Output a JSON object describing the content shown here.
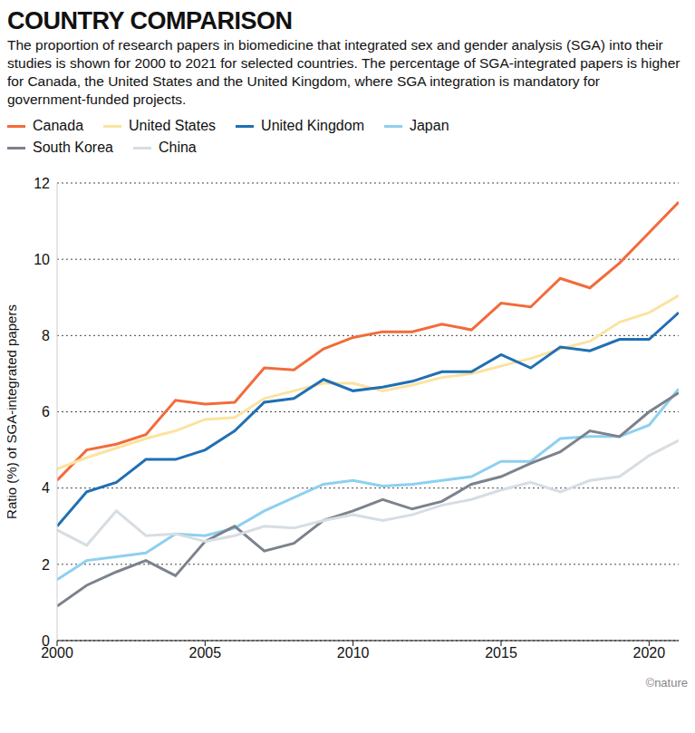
{
  "chart_data": {
    "type": "line",
    "title": "COUNTRY COMPARISON",
    "subtitle": "The proportion of research papers in biomedicine that integrated sex and gender analysis (SGA) into their studies is shown for 2000 to 2021 for selected countries. The percentage of SGA-integrated papers is higher for Canada, the United States and the United Kingdom, where SGA integration is mandatory for government-funded projects.",
    "y_label": "Ratio (%) of SGA-integrated papers",
    "credit": "©nature",
    "x": [
      2000,
      2001,
      2002,
      2003,
      2004,
      2005,
      2006,
      2007,
      2008,
      2009,
      2010,
      2011,
      2012,
      2013,
      2014,
      2015,
      2016,
      2017,
      2018,
      2019,
      2020,
      2021
    ],
    "xlim": [
      2000,
      2021
    ],
    "xticks": [
      2000,
      2005,
      2010,
      2015,
      2020
    ],
    "ylim": [
      0,
      12
    ],
    "yticks": [
      0,
      2,
      4,
      6,
      8,
      10,
      12
    ],
    "grid": true,
    "series": [
      {
        "name": "Canada",
        "color": "#f26b3a",
        "values": [
          4.2,
          5.0,
          5.15,
          5.4,
          6.3,
          6.2,
          6.25,
          7.15,
          7.1,
          7.65,
          7.95,
          8.1,
          8.1,
          8.3,
          8.15,
          8.85,
          8.75,
          9.5,
          9.25,
          9.9,
          10.7,
          11.5
        ]
      },
      {
        "name": "United States",
        "color": "#fbe3a0",
        "values": [
          4.5,
          4.8,
          5.05,
          5.3,
          5.5,
          5.8,
          5.85,
          6.35,
          6.55,
          6.75,
          6.75,
          6.55,
          6.7,
          6.9,
          7.0,
          7.2,
          7.4,
          7.65,
          7.85,
          8.35,
          8.6,
          9.05
        ]
      },
      {
        "name": "United Kingdom",
        "color": "#1f6fb5",
        "values": [
          3.0,
          3.9,
          4.15,
          4.75,
          4.75,
          5.0,
          5.5,
          6.25,
          6.35,
          6.85,
          6.55,
          6.65,
          6.8,
          7.05,
          7.05,
          7.5,
          7.15,
          7.7,
          7.6,
          7.9,
          7.9,
          8.6
        ]
      },
      {
        "name": "Japan",
        "color": "#8dd0f0",
        "values": [
          1.6,
          2.1,
          2.2,
          2.3,
          2.8,
          2.75,
          2.95,
          3.4,
          3.75,
          4.1,
          4.2,
          4.05,
          4.1,
          4.2,
          4.3,
          4.7,
          4.7,
          5.3,
          5.35,
          5.35,
          5.65,
          6.6
        ]
      },
      {
        "name": "South Korea",
        "color": "#7c828c",
        "values": [
          0.9,
          1.45,
          1.8,
          2.1,
          1.7,
          2.6,
          3.0,
          2.35,
          2.55,
          3.15,
          3.4,
          3.7,
          3.45,
          3.65,
          4.1,
          4.3,
          4.65,
          4.95,
          5.5,
          5.35,
          6.0,
          6.5
        ]
      },
      {
        "name": "China",
        "color": "#d6dde3",
        "values": [
          2.9,
          2.5,
          3.4,
          2.75,
          2.8,
          2.6,
          2.75,
          3.0,
          2.95,
          3.15,
          3.3,
          3.15,
          3.3,
          3.55,
          3.7,
          3.95,
          4.15,
          3.9,
          4.2,
          4.3,
          4.85,
          5.25
        ]
      }
    ]
  }
}
